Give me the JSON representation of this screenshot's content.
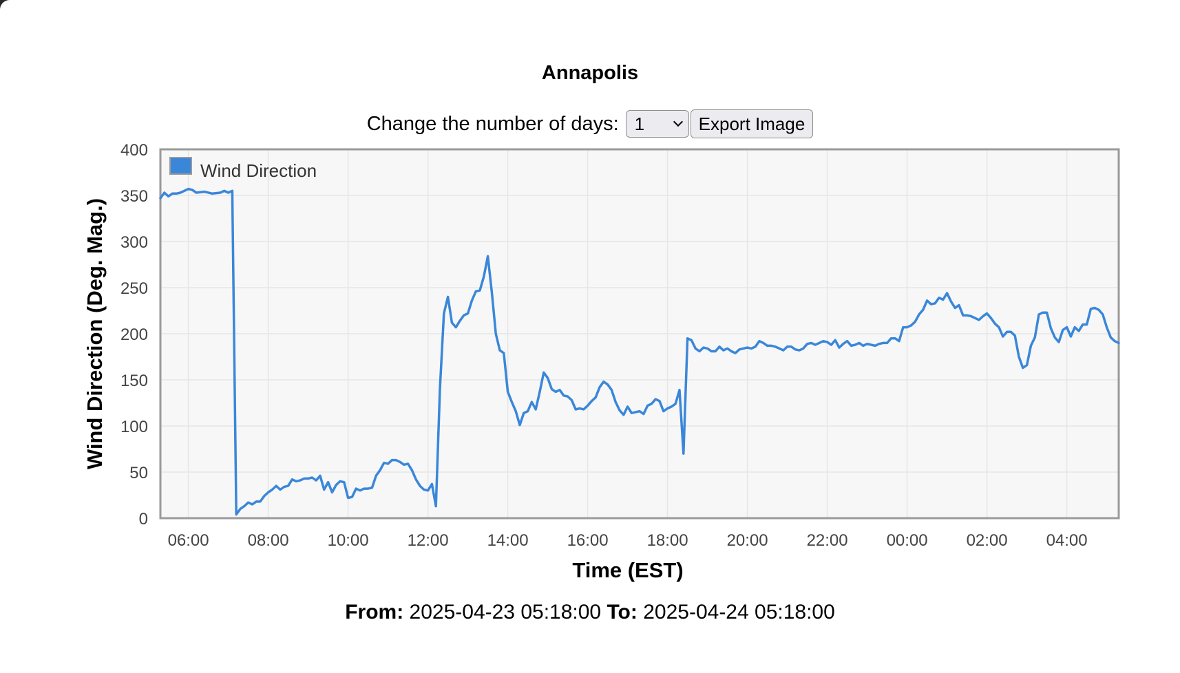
{
  "station": {
    "title": "Annapolis"
  },
  "controls": {
    "days_label": "Change the number of days:",
    "days_selected": "1",
    "export_label": "Export Image"
  },
  "footer": {
    "from_label": "From:",
    "from_value": "2025-04-23 05:18:00",
    "to_label": "To:",
    "to_value": "2025-04-24 05:18:00"
  },
  "colors": {
    "series": "#3a87d9",
    "plot_bg": "#f7f7f7",
    "frame": "#9a9a9a",
    "grid": "#e6e6e6"
  },
  "chart_data": {
    "type": "line",
    "title": "Annapolis",
    "xlabel": "Time (EST)",
    "ylabel": "Wind Direction (Deg. Mag.)",
    "ylim": [
      0,
      400
    ],
    "yticks": [
      "0",
      "50",
      "100",
      "150",
      "200",
      "250",
      "300",
      "350",
      "400"
    ],
    "xticks": [
      "06:00",
      "08:00",
      "10:00",
      "12:00",
      "14:00",
      "16:00",
      "18:00",
      "20:00",
      "22:00",
      "00:00",
      "02:00",
      "04:00"
    ],
    "xlim": [
      "2025-04-23 05:18",
      "2025-04-24 05:18"
    ],
    "grid": true,
    "legend_position": "top-left",
    "series": [
      {
        "name": "Wind Direction",
        "color": "#3a87d9",
        "points": [
          [
            "2025-04-23 05:18",
            347
          ],
          [
            "2025-04-23 05:24",
            353
          ],
          [
            "2025-04-23 05:30",
            349
          ],
          [
            "2025-04-23 05:36",
            352
          ],
          [
            "2025-04-23 05:42",
            352
          ],
          [
            "2025-04-23 05:48",
            353
          ],
          [
            "2025-04-23 05:54",
            355
          ],
          [
            "2025-04-23 06:00",
            357
          ],
          [
            "2025-04-23 06:06",
            356
          ],
          [
            "2025-04-23 06:12",
            353
          ],
          [
            "2025-04-23 06:24",
            354
          ],
          [
            "2025-04-23 06:36",
            352
          ],
          [
            "2025-04-23 06:48",
            353
          ],
          [
            "2025-04-23 06:54",
            355
          ],
          [
            "2025-04-23 07:00",
            353
          ],
          [
            "2025-04-23 07:06",
            355
          ],
          [
            "2025-04-23 07:12",
            4
          ],
          [
            "2025-04-23 07:18",
            10
          ],
          [
            "2025-04-23 07:24",
            13
          ],
          [
            "2025-04-23 07:30",
            17
          ],
          [
            "2025-04-23 07:36",
            15
          ],
          [
            "2025-04-23 07:42",
            18
          ],
          [
            "2025-04-23 07:48",
            18
          ],
          [
            "2025-04-23 07:54",
            24
          ],
          [
            "2025-04-23 08:00",
            28
          ],
          [
            "2025-04-23 08:06",
            31
          ],
          [
            "2025-04-23 08:12",
            35
          ],
          [
            "2025-04-23 08:18",
            31
          ],
          [
            "2025-04-23 08:24",
            34
          ],
          [
            "2025-04-23 08:30",
            35
          ],
          [
            "2025-04-23 08:36",
            42
          ],
          [
            "2025-04-23 08:42",
            40
          ],
          [
            "2025-04-23 08:48",
            41
          ],
          [
            "2025-04-23 08:54",
            43
          ],
          [
            "2025-04-23 09:00",
            43
          ],
          [
            "2025-04-23 09:06",
            44
          ],
          [
            "2025-04-23 09:12",
            41
          ],
          [
            "2025-04-23 09:18",
            46
          ],
          [
            "2025-04-23 09:24",
            31
          ],
          [
            "2025-04-23 09:30",
            39
          ],
          [
            "2025-04-23 09:36",
            28
          ],
          [
            "2025-04-23 09:42",
            36
          ],
          [
            "2025-04-23 09:48",
            40
          ],
          [
            "2025-04-23 09:54",
            39
          ],
          [
            "2025-04-23 10:00",
            22
          ],
          [
            "2025-04-23 10:06",
            23
          ],
          [
            "2025-04-23 10:12",
            32
          ],
          [
            "2025-04-23 10:18",
            30
          ],
          [
            "2025-04-23 10:24",
            32
          ],
          [
            "2025-04-23 10:30",
            32
          ],
          [
            "2025-04-23 10:36",
            33
          ],
          [
            "2025-04-23 10:42",
            46
          ],
          [
            "2025-04-23 10:48",
            52
          ],
          [
            "2025-04-23 10:54",
            60
          ],
          [
            "2025-04-23 11:00",
            59
          ],
          [
            "2025-04-23 11:06",
            63
          ],
          [
            "2025-04-23 11:12",
            63
          ],
          [
            "2025-04-23 11:18",
            61
          ],
          [
            "2025-04-23 11:24",
            58
          ],
          [
            "2025-04-23 11:30",
            59
          ],
          [
            "2025-04-23 11:36",
            52
          ],
          [
            "2025-04-23 11:42",
            42
          ],
          [
            "2025-04-23 11:48",
            35
          ],
          [
            "2025-04-23 11:54",
            31
          ],
          [
            "2025-04-23 12:00",
            30
          ],
          [
            "2025-04-23 12:06",
            37
          ],
          [
            "2025-04-23 12:12",
            13
          ],
          [
            "2025-04-23 12:18",
            140
          ],
          [
            "2025-04-23 12:24",
            222
          ],
          [
            "2025-04-23 12:30",
            240
          ],
          [
            "2025-04-23 12:36",
            212
          ],
          [
            "2025-04-23 12:42",
            207
          ],
          [
            "2025-04-23 12:48",
            214
          ],
          [
            "2025-04-23 12:54",
            220
          ],
          [
            "2025-04-23 13:00",
            222
          ],
          [
            "2025-04-23 13:06",
            236
          ],
          [
            "2025-04-23 13:12",
            246
          ],
          [
            "2025-04-23 13:18",
            247
          ],
          [
            "2025-04-23 13:24",
            262
          ],
          [
            "2025-04-23 13:30",
            284
          ],
          [
            "2025-04-23 13:36",
            245
          ],
          [
            "2025-04-23 13:42",
            200
          ],
          [
            "2025-04-23 13:48",
            182
          ],
          [
            "2025-04-23 13:54",
            179
          ],
          [
            "2025-04-23 14:00",
            137
          ],
          [
            "2025-04-23 14:06",
            126
          ],
          [
            "2025-04-23 14:12",
            116
          ],
          [
            "2025-04-23 14:18",
            101
          ],
          [
            "2025-04-23 14:24",
            114
          ],
          [
            "2025-04-23 14:30",
            116
          ],
          [
            "2025-04-23 14:36",
            126
          ],
          [
            "2025-04-23 14:42",
            118
          ],
          [
            "2025-04-23 14:48",
            137
          ],
          [
            "2025-04-23 14:54",
            158
          ],
          [
            "2025-04-23 15:00",
            152
          ],
          [
            "2025-04-23 15:06",
            140
          ],
          [
            "2025-04-23 15:12",
            137
          ],
          [
            "2025-04-23 15:18",
            139
          ],
          [
            "2025-04-23 15:24",
            133
          ],
          [
            "2025-04-23 15:30",
            132
          ],
          [
            "2025-04-23 15:36",
            128
          ],
          [
            "2025-04-23 15:42",
            118
          ],
          [
            "2025-04-23 15:48",
            119
          ],
          [
            "2025-04-23 15:54",
            118
          ],
          [
            "2025-04-23 16:00",
            122
          ],
          [
            "2025-04-23 16:06",
            127
          ],
          [
            "2025-04-23 16:12",
            131
          ],
          [
            "2025-04-23 16:18",
            142
          ],
          [
            "2025-04-23 16:24",
            148
          ],
          [
            "2025-04-23 16:30",
            145
          ],
          [
            "2025-04-23 16:36",
            139
          ],
          [
            "2025-04-23 16:42",
            126
          ],
          [
            "2025-04-23 16:48",
            117
          ],
          [
            "2025-04-23 16:54",
            112
          ],
          [
            "2025-04-23 17:00",
            121
          ],
          [
            "2025-04-23 17:06",
            114
          ],
          [
            "2025-04-23 17:12",
            115
          ],
          [
            "2025-04-23 17:18",
            116
          ],
          [
            "2025-04-23 17:24",
            113
          ],
          [
            "2025-04-23 17:30",
            122
          ],
          [
            "2025-04-23 17:36",
            124
          ],
          [
            "2025-04-23 17:42",
            129
          ],
          [
            "2025-04-23 17:48",
            127
          ],
          [
            "2025-04-23 17:54",
            116
          ],
          [
            "2025-04-23 18:00",
            119
          ],
          [
            "2025-04-23 18:06",
            121
          ],
          [
            "2025-04-23 18:12",
            124
          ],
          [
            "2025-04-23 18:18",
            139
          ],
          [
            "2025-04-23 18:24",
            70
          ],
          [
            "2025-04-23 18:30",
            195
          ],
          [
            "2025-04-23 18:36",
            193
          ],
          [
            "2025-04-23 18:42",
            184
          ],
          [
            "2025-04-23 18:48",
            181
          ],
          [
            "2025-04-23 18:54",
            185
          ],
          [
            "2025-04-23 19:00",
            184
          ],
          [
            "2025-04-23 19:06",
            181
          ],
          [
            "2025-04-23 19:12",
            181
          ],
          [
            "2025-04-23 19:18",
            186
          ],
          [
            "2025-04-23 19:24",
            182
          ],
          [
            "2025-04-23 19:30",
            184
          ],
          [
            "2025-04-23 19:36",
            181
          ],
          [
            "2025-04-23 19:42",
            179
          ],
          [
            "2025-04-23 19:48",
            183
          ],
          [
            "2025-04-23 19:54",
            184
          ],
          [
            "2025-04-23 20:00",
            185
          ],
          [
            "2025-04-23 20:06",
            184
          ],
          [
            "2025-04-23 20:12",
            186
          ],
          [
            "2025-04-23 20:18",
            192
          ],
          [
            "2025-04-23 20:24",
            190
          ],
          [
            "2025-04-23 20:30",
            187
          ],
          [
            "2025-04-23 20:36",
            187
          ],
          [
            "2025-04-23 20:42",
            186
          ],
          [
            "2025-04-23 20:48",
            184
          ],
          [
            "2025-04-23 20:54",
            182
          ],
          [
            "2025-04-23 21:00",
            186
          ],
          [
            "2025-04-23 21:06",
            186
          ],
          [
            "2025-04-23 21:12",
            183
          ],
          [
            "2025-04-23 21:18",
            182
          ],
          [
            "2025-04-23 21:24",
            184
          ],
          [
            "2025-04-23 21:30",
            189
          ],
          [
            "2025-04-23 21:36",
            190
          ],
          [
            "2025-04-23 21:42",
            188
          ],
          [
            "2025-04-23 21:48",
            190
          ],
          [
            "2025-04-23 21:54",
            192
          ],
          [
            "2025-04-23 22:00",
            191
          ],
          [
            "2025-04-23 22:06",
            188
          ],
          [
            "2025-04-23 22:12",
            193
          ],
          [
            "2025-04-23 22:18",
            185
          ],
          [
            "2025-04-23 22:24",
            189
          ],
          [
            "2025-04-23 22:30",
            192
          ],
          [
            "2025-04-23 22:36",
            187
          ],
          [
            "2025-04-23 22:42",
            188
          ],
          [
            "2025-04-23 22:48",
            190
          ],
          [
            "2025-04-23 22:54",
            187
          ],
          [
            "2025-04-23 23:00",
            189
          ],
          [
            "2025-04-23 23:06",
            188
          ],
          [
            "2025-04-23 23:12",
            187
          ],
          [
            "2025-04-23 23:18",
            189
          ],
          [
            "2025-04-23 23:24",
            190
          ],
          [
            "2025-04-23 23:30",
            190
          ],
          [
            "2025-04-23 23:36",
            195
          ],
          [
            "2025-04-23 23:42",
            195
          ],
          [
            "2025-04-23 23:48",
            192
          ],
          [
            "2025-04-23 23:54",
            207
          ],
          [
            "2025-04-24 00:00",
            207
          ],
          [
            "2025-04-24 00:06",
            209
          ],
          [
            "2025-04-24 00:12",
            213
          ],
          [
            "2025-04-24 00:18",
            221
          ],
          [
            "2025-04-24 00:24",
            226
          ],
          [
            "2025-04-24 00:30",
            236
          ],
          [
            "2025-04-24 00:36",
            232
          ],
          [
            "2025-04-24 00:42",
            233
          ],
          [
            "2025-04-24 00:48",
            239
          ],
          [
            "2025-04-24 00:54",
            237
          ],
          [
            "2025-04-24 01:00",
            244
          ],
          [
            "2025-04-24 01:06",
            235
          ],
          [
            "2025-04-24 01:12",
            228
          ],
          [
            "2025-04-24 01:18",
            231
          ],
          [
            "2025-04-24 01:24",
            220
          ],
          [
            "2025-04-24 01:30",
            220
          ],
          [
            "2025-04-24 01:36",
            219
          ],
          [
            "2025-04-24 01:42",
            217
          ],
          [
            "2025-04-24 01:48",
            215
          ],
          [
            "2025-04-24 01:54",
            219
          ],
          [
            "2025-04-24 02:00",
            222
          ],
          [
            "2025-04-24 02:06",
            217
          ],
          [
            "2025-04-24 02:12",
            211
          ],
          [
            "2025-04-24 02:18",
            207
          ],
          [
            "2025-04-24 02:24",
            197
          ],
          [
            "2025-04-24 02:30",
            202
          ],
          [
            "2025-04-24 02:36",
            202
          ],
          [
            "2025-04-24 02:42",
            198
          ],
          [
            "2025-04-24 02:48",
            175
          ],
          [
            "2025-04-24 02:54",
            163
          ],
          [
            "2025-04-24 03:00",
            166
          ],
          [
            "2025-04-24 03:06",
            187
          ],
          [
            "2025-04-24 03:12",
            196
          ],
          [
            "2025-04-24 03:18",
            221
          ],
          [
            "2025-04-24 03:24",
            223
          ],
          [
            "2025-04-24 03:30",
            223
          ],
          [
            "2025-04-24 03:36",
            206
          ],
          [
            "2025-04-24 03:42",
            196
          ],
          [
            "2025-04-24 03:48",
            191
          ],
          [
            "2025-04-24 03:54",
            204
          ],
          [
            "2025-04-24 04:00",
            207
          ],
          [
            "2025-04-24 04:06",
            197
          ],
          [
            "2025-04-24 04:12",
            207
          ],
          [
            "2025-04-24 04:18",
            203
          ],
          [
            "2025-04-24 04:24",
            210
          ],
          [
            "2025-04-24 04:30",
            210
          ],
          [
            "2025-04-24 04:36",
            227
          ],
          [
            "2025-04-24 04:42",
            228
          ],
          [
            "2025-04-24 04:48",
            226
          ],
          [
            "2025-04-24 04:54",
            221
          ],
          [
            "2025-04-24 05:00",
            207
          ],
          [
            "2025-04-24 05:06",
            196
          ],
          [
            "2025-04-24 05:12",
            192
          ],
          [
            "2025-04-24 05:18",
            190
          ]
        ]
      }
    ]
  }
}
